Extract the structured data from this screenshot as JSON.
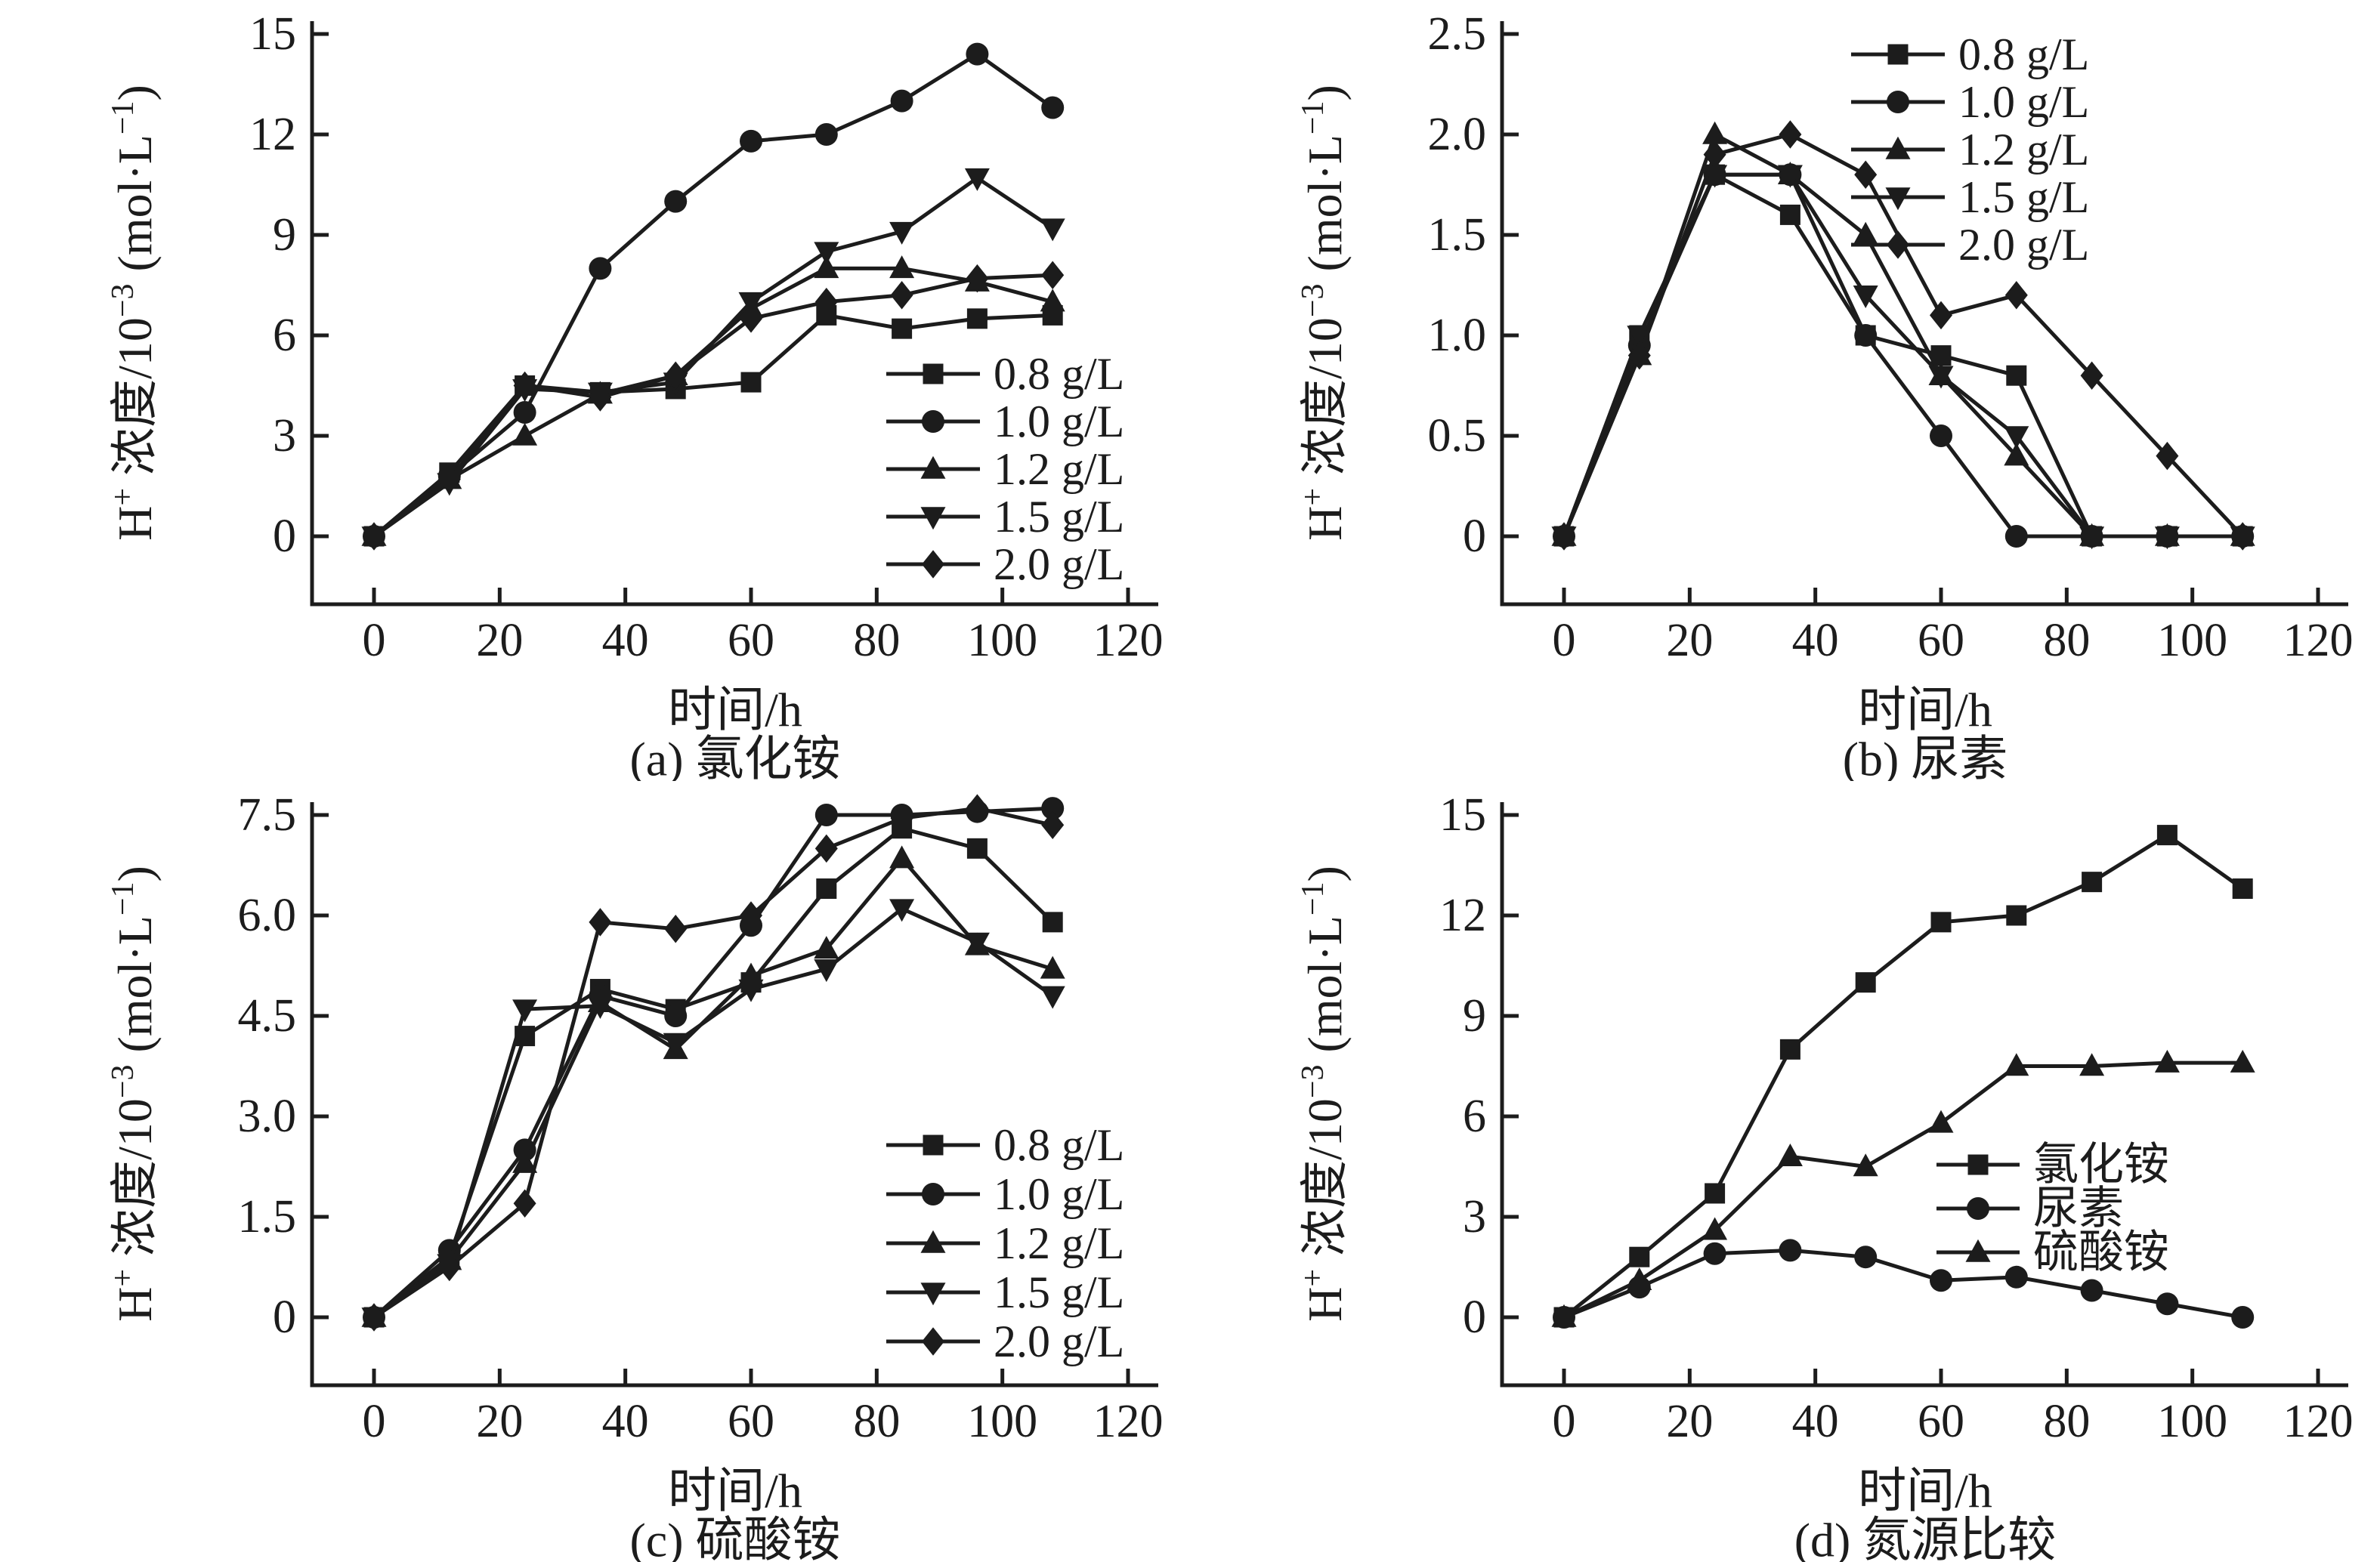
{
  "figure": {
    "background": "#ffffff",
    "ink_color": "#1c1c1c",
    "description_visible_text_only": true
  },
  "chart_data": [
    {
      "id": "a",
      "type": "line",
      "caption": "(a) 氯化铵",
      "xlabel": "时间/h",
      "ylabel_parts": [
        {
          "text": "H",
          "sup": false
        },
        {
          "text": "+",
          "sup": true
        },
        {
          "text": " 浓度/10",
          "sup": false
        },
        {
          "text": "−3",
          "sup": true
        },
        {
          "text": " (mol·L",
          "sup": false
        },
        {
          "text": "−1",
          "sup": true
        },
        {
          "text": ")",
          "sup": false
        }
      ],
      "x": [
        0,
        12,
        24,
        36,
        48,
        60,
        72,
        84,
        96,
        108
      ],
      "xticks": [
        0,
        20,
        40,
        60,
        80,
        100,
        120
      ],
      "yticks": [
        {
          "v": 0,
          "label": "0"
        },
        {
          "v": 3,
          "label": "3"
        },
        {
          "v": 6,
          "label": "6"
        },
        {
          "v": 9,
          "label": "9"
        },
        {
          "v": 12,
          "label": "12"
        },
        {
          "v": 15,
          "label": "15"
        }
      ],
      "ymax": 15,
      "xlim": [
        -10,
        125
      ],
      "ylim": [
        -2,
        15.3
      ],
      "grid": false,
      "legend_position": "mid-right",
      "series": [
        {
          "name": "0.8 g/L",
          "marker": "square",
          "values": [
            0,
            1.9,
            4.5,
            4.3,
            4.4,
            4.6,
            6.6,
            6.2,
            6.5,
            6.6
          ]
        },
        {
          "name": "1.0 g/L",
          "marker": "circle",
          "values": [
            0,
            1.8,
            3.7,
            8.0,
            10.0,
            11.8,
            12.0,
            13.0,
            14.4,
            12.8
          ]
        },
        {
          "name": "1.2 g/L",
          "marker": "triangle-up",
          "values": [
            0,
            1.7,
            3.0,
            4.25,
            4.8,
            6.8,
            8.0,
            8.0,
            7.6,
            7.0
          ]
        },
        {
          "name": "1.5 g/L",
          "marker": "triangle-down",
          "values": [
            0,
            1.6,
            4.4,
            4.3,
            4.6,
            7.0,
            8.5,
            9.1,
            10.7,
            9.2
          ]
        },
        {
          "name": "2.0 g/L",
          "marker": "diamond",
          "values": [
            0,
            1.7,
            4.5,
            4.15,
            4.8,
            6.5,
            7.0,
            7.2,
            7.7,
            7.8
          ]
        }
      ]
    },
    {
      "id": "b",
      "type": "line",
      "caption": "(b) 尿素",
      "xlabel": "时间/h",
      "ylabel_parts": [
        {
          "text": "H",
          "sup": false
        },
        {
          "text": "+",
          "sup": true
        },
        {
          "text": " 浓度/10",
          "sup": false
        },
        {
          "text": "−3",
          "sup": true
        },
        {
          "text": " (mol·L",
          "sup": false
        },
        {
          "text": "−1",
          "sup": true
        },
        {
          "text": ")",
          "sup": false
        }
      ],
      "x": [
        0,
        12,
        24,
        36,
        48,
        60,
        72,
        84,
        96,
        108
      ],
      "xticks": [
        0,
        20,
        40,
        60,
        80,
        100,
        120
      ],
      "yticks": [
        {
          "v": 0,
          "label": "0"
        },
        {
          "v": 0.5,
          "label": "0.5"
        },
        {
          "v": 1.0,
          "label": "1.0"
        },
        {
          "v": 1.5,
          "label": "1.5"
        },
        {
          "v": 2.0,
          "label": "2.0"
        },
        {
          "v": 2.5,
          "label": "2.5"
        }
      ],
      "ymax": 2.5,
      "xlim": [
        -10,
        125
      ],
      "ylim": [
        -0.34,
        2.55
      ],
      "grid": false,
      "legend_position": "top-right",
      "series": [
        {
          "name": "0.8 g/L",
          "marker": "square",
          "values": [
            0,
            1.0,
            1.8,
            1.6,
            1.0,
            0.9,
            0.8,
            0,
            0,
            0
          ]
        },
        {
          "name": "1.0 g/L",
          "marker": "circle",
          "values": [
            0,
            0.95,
            1.8,
            1.8,
            1.0,
            0.5,
            0,
            0,
            0,
            0
          ]
        },
        {
          "name": "1.2 g/L",
          "marker": "triangle-up",
          "values": [
            0,
            0.9,
            2.0,
            1.8,
            1.5,
            0.8,
            0.4,
            0,
            0,
            0
          ]
        },
        {
          "name": "1.5 g/L",
          "marker": "triangle-down",
          "values": [
            0,
            1.0,
            1.8,
            1.8,
            1.2,
            0.8,
            0.5,
            0,
            0,
            0
          ]
        },
        {
          "name": "2.0 g/L",
          "marker": "diamond",
          "values": [
            0,
            0.9,
            1.9,
            2.0,
            1.8,
            1.1,
            1.2,
            0.8,
            0.4,
            0
          ]
        }
      ]
    },
    {
      "id": "c",
      "type": "line",
      "caption": "(c) 硫酸铵",
      "xlabel": "时间/h",
      "ylabel_parts": [
        {
          "text": "H",
          "sup": false
        },
        {
          "text": "+",
          "sup": true
        },
        {
          "text": " 浓度/10",
          "sup": false
        },
        {
          "text": "−3",
          "sup": true
        },
        {
          "text": " (mol·L",
          "sup": false
        },
        {
          "text": "−1",
          "sup": true
        },
        {
          "text": ")",
          "sup": false
        }
      ],
      "x": [
        0,
        12,
        24,
        36,
        48,
        60,
        72,
        84,
        96,
        108
      ],
      "xticks": [
        0,
        20,
        40,
        60,
        80,
        100,
        120
      ],
      "yticks": [
        {
          "v": 0,
          "label": "0"
        },
        {
          "v": 1.5,
          "label": "1.5"
        },
        {
          "v": 3.0,
          "label": "3.0"
        },
        {
          "v": 4.5,
          "label": "4.5"
        },
        {
          "v": 6.0,
          "label": "6.0"
        },
        {
          "v": 7.5,
          "label": "7.5"
        }
      ],
      "ymax": 7.5,
      "xlim": [
        -10,
        125
      ],
      "ylim": [
        -1.0,
        7.65
      ],
      "grid": false,
      "legend_position": "bottom-right",
      "series": [
        {
          "name": "0.8 g/L",
          "marker": "square",
          "values": [
            0,
            0.9,
            4.2,
            4.9,
            4.6,
            5.0,
            6.4,
            7.3,
            7.0,
            5.9
          ]
        },
        {
          "name": "1.0 g/L",
          "marker": "circle",
          "values": [
            0,
            1.0,
            2.5,
            4.8,
            4.5,
            5.85,
            7.5,
            7.5,
            7.55,
            7.6
          ]
        },
        {
          "name": "1.2 g/L",
          "marker": "triangle-up",
          "values": [
            0,
            0.85,
            2.3,
            4.7,
            4.0,
            5.1,
            5.5,
            6.85,
            5.55,
            5.2
          ]
        },
        {
          "name": "1.5 g/L",
          "marker": "triangle-down",
          "values": [
            0,
            0.8,
            4.6,
            4.65,
            4.1,
            4.9,
            5.2,
            6.1,
            5.6,
            4.8
          ]
        },
        {
          "name": "2.0 g/L",
          "marker": "diamond",
          "values": [
            0,
            0.75,
            1.7,
            5.9,
            5.8,
            6.0,
            7.0,
            7.45,
            7.6,
            7.35
          ]
        }
      ]
    },
    {
      "id": "d",
      "type": "line",
      "caption": "(d) 氮源比较",
      "xlabel": "时间/h",
      "ylabel_parts": [
        {
          "text": "H",
          "sup": false
        },
        {
          "text": "+",
          "sup": true
        },
        {
          "text": " 浓度/10",
          "sup": false
        },
        {
          "text": "−3",
          "sup": true
        },
        {
          "text": " (mol·L",
          "sup": false
        },
        {
          "text": "−1",
          "sup": true
        },
        {
          "text": ")",
          "sup": false
        }
      ],
      "x": [
        0,
        12,
        24,
        36,
        48,
        60,
        72,
        84,
        96,
        108
      ],
      "xticks": [
        0,
        20,
        40,
        60,
        80,
        100,
        120
      ],
      "yticks": [
        {
          "v": 0,
          "label": "0"
        },
        {
          "v": 3,
          "label": "3"
        },
        {
          "v": 6,
          "label": "6"
        },
        {
          "v": 9,
          "label": "9"
        },
        {
          "v": 12,
          "label": "12"
        },
        {
          "v": 15,
          "label": "15"
        }
      ],
      "ymax": 15,
      "xlim": [
        -10,
        125
      ],
      "ylim": [
        -2,
        15.3
      ],
      "grid": false,
      "legend_position": "mid-right",
      "series": [
        {
          "name": "氯化铵",
          "marker": "square",
          "values": [
            0,
            1.8,
            3.7,
            8.0,
            10.0,
            11.8,
            12.0,
            13.0,
            14.4,
            12.8
          ]
        },
        {
          "name": "尿素",
          "marker": "circle",
          "values": [
            0,
            0.9,
            1.9,
            2.0,
            1.8,
            1.1,
            1.2,
            0.8,
            0.4,
            0
          ]
        },
        {
          "name": "硫酸铵",
          "marker": "triangle-up",
          "values": [
            0,
            1.1,
            2.6,
            4.8,
            4.5,
            5.8,
            7.5,
            7.5,
            7.6,
            7.6
          ]
        }
      ]
    }
  ]
}
